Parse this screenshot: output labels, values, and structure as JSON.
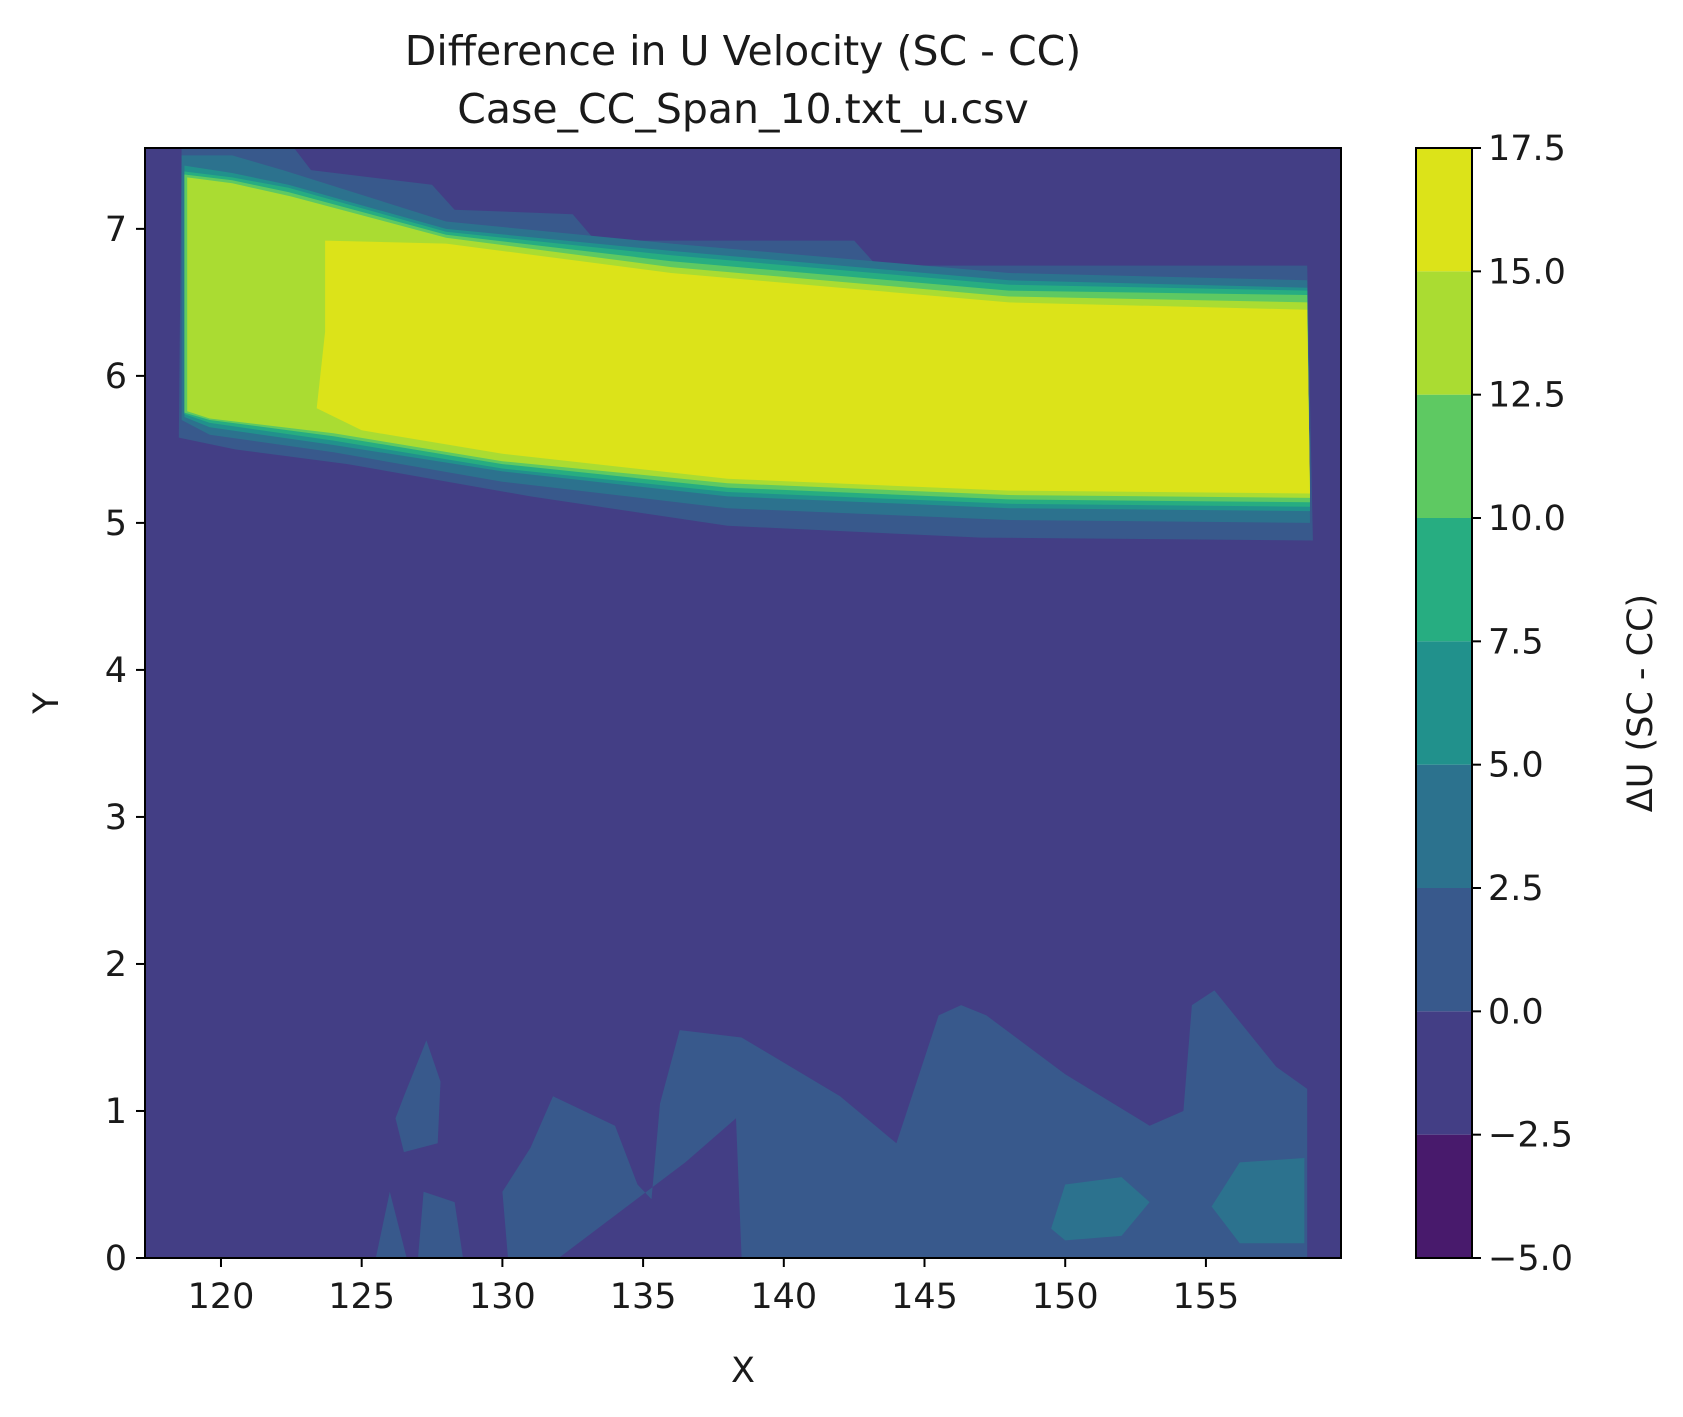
{
  "chart_data": {
    "type": "contour",
    "title": "Difference in U Velocity (SC - CC)",
    "subtitle": "Case_CC_Span_10.txt_u.csv",
    "xlabel": "X",
    "ylabel": "Y",
    "xlim": [
      117.3,
      159.8
    ],
    "ylim": [
      0,
      7.55
    ],
    "xticks": [
      120,
      125,
      130,
      135,
      140,
      145,
      150,
      155
    ],
    "xtick_labels": [
      "120",
      "125",
      "130",
      "135",
      "140",
      "145",
      "150",
      "155"
    ],
    "yticks": [
      0,
      1,
      2,
      3,
      4,
      5,
      6,
      7
    ],
    "ytick_labels": [
      "0",
      "1",
      "2",
      "3",
      "4",
      "5",
      "6",
      "7"
    ],
    "colormap": "viridis",
    "background_level": [
      -2.5,
      0.0
    ],
    "colorbar": {
      "label": "ΔU (SC - CC)",
      "levels": [
        -5.0,
        -2.5,
        0.0,
        2.5,
        5.0,
        7.5,
        10.0,
        12.5,
        15.0,
        17.5
      ],
      "tick_labels": [
        "−5.0",
        "−2.5",
        "0.0",
        "2.5",
        "5.0",
        "7.5",
        "10.0",
        "12.5",
        "15.0",
        "17.5"
      ],
      "colors": [
        "#481a6c",
        "#433e85",
        "#38598c",
        "#2c728e",
        "#21918c",
        "#27ad81",
        "#5ec962",
        "#aadc32",
        "#dce319"
      ]
    },
    "regions": [
      {
        "name": "jet-band-outer",
        "level": [
          0.0,
          2.5
        ],
        "points": [
          [
            118.6,
            7.55
          ],
          [
            122.6,
            7.55
          ],
          [
            123.2,
            7.4
          ],
          [
            127.5,
            7.3
          ],
          [
            128.3,
            7.13
          ],
          [
            132.5,
            7.1
          ],
          [
            133.3,
            6.92
          ],
          [
            142.5,
            6.92
          ],
          [
            143.3,
            6.75
          ],
          [
            158.6,
            6.75
          ],
          [
            158.8,
            4.88
          ],
          [
            147,
            4.9
          ],
          [
            138,
            4.98
          ],
          [
            131,
            5.18
          ],
          [
            124.5,
            5.4
          ],
          [
            120.5,
            5.5
          ],
          [
            118.5,
            5.58
          ]
        ]
      },
      {
        "name": "jet-band-mid",
        "level": [
          2.5,
          5.0
        ],
        "points": [
          [
            118.6,
            7.5
          ],
          [
            120.4,
            7.5
          ],
          [
            122.2,
            7.4
          ],
          [
            128,
            7.05
          ],
          [
            136,
            6.9
          ],
          [
            148,
            6.7
          ],
          [
            158.6,
            6.65
          ],
          [
            158.7,
            5.0
          ],
          [
            148,
            5.02
          ],
          [
            138,
            5.1
          ],
          [
            130,
            5.28
          ],
          [
            124,
            5.48
          ],
          [
            119.6,
            5.6
          ],
          [
            118.6,
            5.7
          ]
        ]
      },
      {
        "name": "jet-band-inner",
        "level": [
          5.0,
          7.5
        ],
        "points": [
          [
            118.7,
            7.43
          ],
          [
            120.4,
            7.38
          ],
          [
            122.4,
            7.3
          ],
          [
            128,
            7.0
          ],
          [
            136,
            6.85
          ],
          [
            148,
            6.65
          ],
          [
            158.6,
            6.6
          ],
          [
            158.7,
            5.08
          ],
          [
            148,
            5.1
          ],
          [
            138,
            5.18
          ],
          [
            130,
            5.35
          ],
          [
            124,
            5.53
          ],
          [
            119.6,
            5.65
          ],
          [
            118.7,
            5.72
          ]
        ]
      },
      {
        "name": "jet-band-7",
        "level": [
          7.5,
          10.0
        ],
        "points": [
          [
            118.7,
            7.39
          ],
          [
            120.4,
            7.35
          ],
          [
            122.4,
            7.28
          ],
          [
            128,
            6.98
          ],
          [
            136,
            6.82
          ],
          [
            148,
            6.62
          ],
          [
            158.6,
            6.58
          ],
          [
            158.7,
            5.11
          ],
          [
            148,
            5.13
          ],
          [
            138,
            5.21
          ],
          [
            130,
            5.37
          ],
          [
            124,
            5.56
          ],
          [
            119.6,
            5.68
          ],
          [
            118.7,
            5.74
          ]
        ]
      },
      {
        "name": "jet-band-10",
        "level": [
          10.0,
          12.5
        ],
        "points": [
          [
            118.7,
            7.37
          ],
          [
            120.4,
            7.33
          ],
          [
            122.4,
            7.25
          ],
          [
            128,
            6.96
          ],
          [
            136,
            6.78
          ],
          [
            148,
            6.58
          ],
          [
            158.6,
            6.55
          ],
          [
            158.7,
            5.14
          ],
          [
            148,
            5.16
          ],
          [
            138,
            5.24
          ],
          [
            130,
            5.4
          ],
          [
            124,
            5.59
          ],
          [
            119.6,
            5.7
          ],
          [
            118.7,
            5.75
          ]
        ]
      },
      {
        "name": "jet-band-12",
        "level": [
          12.5,
          15.0
        ],
        "points": [
          [
            118.8,
            7.35
          ],
          [
            120.4,
            7.31
          ],
          [
            122.5,
            7.22
          ],
          [
            128,
            6.94
          ],
          [
            136,
            6.74
          ],
          [
            148,
            6.54
          ],
          [
            158.6,
            6.5
          ],
          [
            158.7,
            5.17
          ],
          [
            148,
            5.19
          ],
          [
            138,
            5.27
          ],
          [
            130,
            5.42
          ],
          [
            124,
            5.61
          ],
          [
            119.6,
            5.71
          ],
          [
            118.8,
            5.76
          ]
        ]
      },
      {
        "name": "jet-core",
        "level": [
          15.0,
          17.5
        ],
        "points": [
          [
            123.7,
            6.92
          ],
          [
            128,
            6.9
          ],
          [
            136,
            6.7
          ],
          [
            142,
            6.6
          ],
          [
            148,
            6.5
          ],
          [
            158.6,
            6.45
          ],
          [
            158.7,
            5.2
          ],
          [
            148,
            5.22
          ],
          [
            138,
            5.3
          ],
          [
            130,
            5.47
          ],
          [
            125,
            5.63
          ],
          [
            123.4,
            5.78
          ],
          [
            123.7,
            6.3
          ]
        ]
      },
      {
        "name": "bottom-blob-1",
        "level": [
          0.0,
          2.5
        ],
        "points": [
          [
            130.2,
            0.0
          ],
          [
            130.0,
            0.45
          ],
          [
            131.0,
            0.75
          ],
          [
            131.8,
            1.1
          ],
          [
            134.0,
            0.9
          ],
          [
            134.8,
            0.5
          ],
          [
            135.3,
            0.4
          ],
          [
            135.6,
            1.05
          ],
          [
            136.3,
            1.55
          ],
          [
            138.5,
            1.5
          ],
          [
            142.0,
            1.1
          ],
          [
            144.0,
            0.78
          ],
          [
            145.5,
            1.65
          ],
          [
            146.3,
            1.72
          ],
          [
            147.2,
            1.65
          ],
          [
            150.0,
            1.25
          ],
          [
            153.0,
            0.9
          ],
          [
            154.2,
            1.0
          ],
          [
            154.5,
            1.72
          ],
          [
            155.3,
            1.82
          ],
          [
            157.5,
            1.3
          ],
          [
            158.6,
            1.15
          ],
          [
            158.6,
            0.0
          ],
          [
            138.5,
            0.0
          ],
          [
            138.3,
            0.95
          ],
          [
            136.5,
            0.65
          ],
          [
            132.0,
            0.0
          ]
        ]
      },
      {
        "name": "bottom-blob-2",
        "level": [
          0.0,
          2.5
        ],
        "points": [
          [
            126.2,
            0.95
          ],
          [
            126.5,
            1.1
          ],
          [
            127.3,
            1.48
          ],
          [
            127.8,
            1.2
          ],
          [
            127.7,
            0.78
          ],
          [
            126.5,
            0.72
          ]
        ]
      },
      {
        "name": "bottom-blob-3",
        "level": [
          0.0,
          2.5
        ],
        "points": [
          [
            125.5,
            0.0
          ],
          [
            126.0,
            0.45
          ],
          [
            126.6,
            0.0
          ]
        ]
      },
      {
        "name": "bottom-blob-4",
        "level": [
          0.0,
          2.5
        ],
        "points": [
          [
            127.0,
            0.0
          ],
          [
            127.2,
            0.45
          ],
          [
            128.3,
            0.38
          ],
          [
            128.6,
            0.0
          ]
        ]
      },
      {
        "name": "bottom-patch-5a",
        "level": [
          2.5,
          5.0
        ],
        "points": [
          [
            149.5,
            0.2
          ],
          [
            150.0,
            0.5
          ],
          [
            152.0,
            0.55
          ],
          [
            153.0,
            0.38
          ],
          [
            152.0,
            0.15
          ],
          [
            150.0,
            0.12
          ]
        ]
      },
      {
        "name": "bottom-patch-5b",
        "level": [
          2.5,
          5.0
        ],
        "points": [
          [
            155.2,
            0.35
          ],
          [
            156.2,
            0.65
          ],
          [
            158.5,
            0.68
          ],
          [
            158.5,
            0.1
          ],
          [
            156.2,
            0.1
          ]
        ]
      }
    ]
  }
}
